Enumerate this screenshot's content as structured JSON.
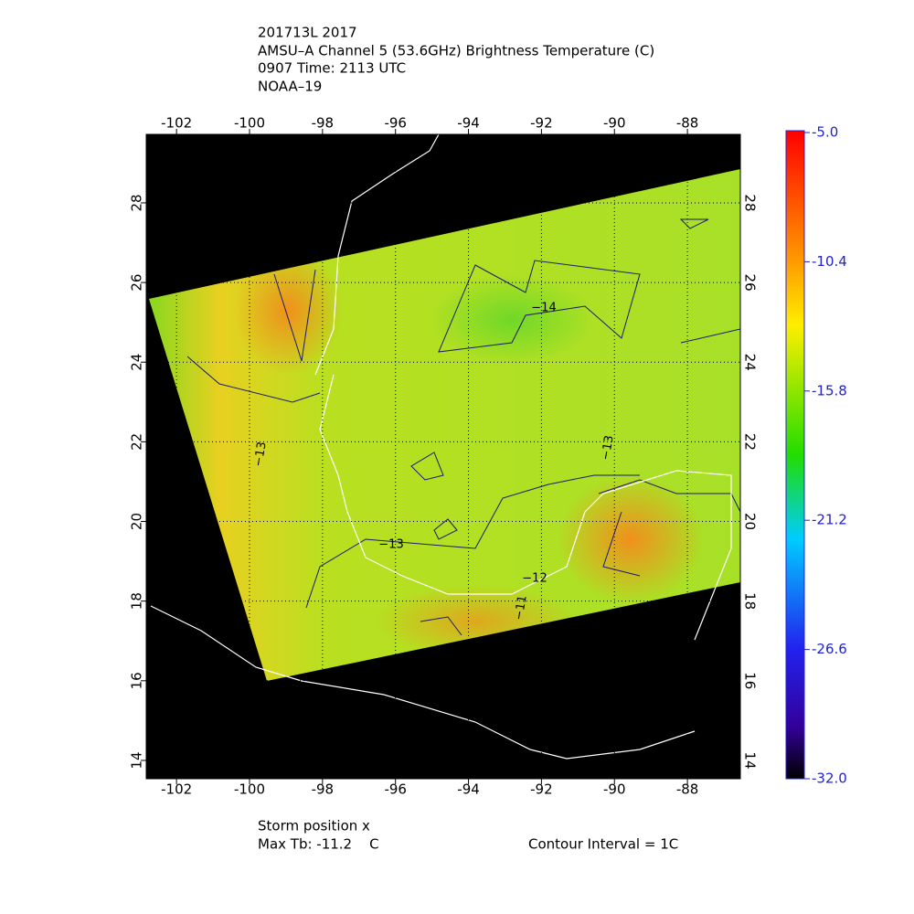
{
  "header": {
    "lines": [
      "201713L 2017",
      "AMSU–A Channel 5 (53.6GHz) Brightness Temperature (C)",
      "0907 Time: 2113 UTC",
      "NOAA–19"
    ]
  },
  "map": {
    "xlim": [
      -102.83,
      -86.55
    ],
    "ylim": [
      13.54,
      29.72
    ],
    "xticks": [
      -102,
      -100,
      -98,
      -96,
      -94,
      -92,
      -90,
      -88
    ],
    "yticks": [
      14,
      16,
      18,
      20,
      22,
      24,
      26,
      28
    ],
    "contour_labels": [
      "−14",
      "−13",
      "−13",
      "−13",
      "−12",
      "−11"
    ]
  },
  "colorbar": {
    "lim": [
      -32,
      -5
    ],
    "ticks": [
      {
        "value": -5,
        "label": "-5.0"
      },
      {
        "value": -10.4,
        "label": "-10.4"
      },
      {
        "value": -15.8,
        "label": "-15.8"
      },
      {
        "value": -21.2,
        "label": "-21.2"
      },
      {
        "value": -26.6,
        "label": "-26.6"
      },
      {
        "value": -32,
        "label": "-32.0"
      }
    ]
  },
  "footer": {
    "storm": "Storm position x",
    "max_tb": "Max Tb: -11.2    C",
    "contour_interval": "Contour Interval = 1C"
  }
}
